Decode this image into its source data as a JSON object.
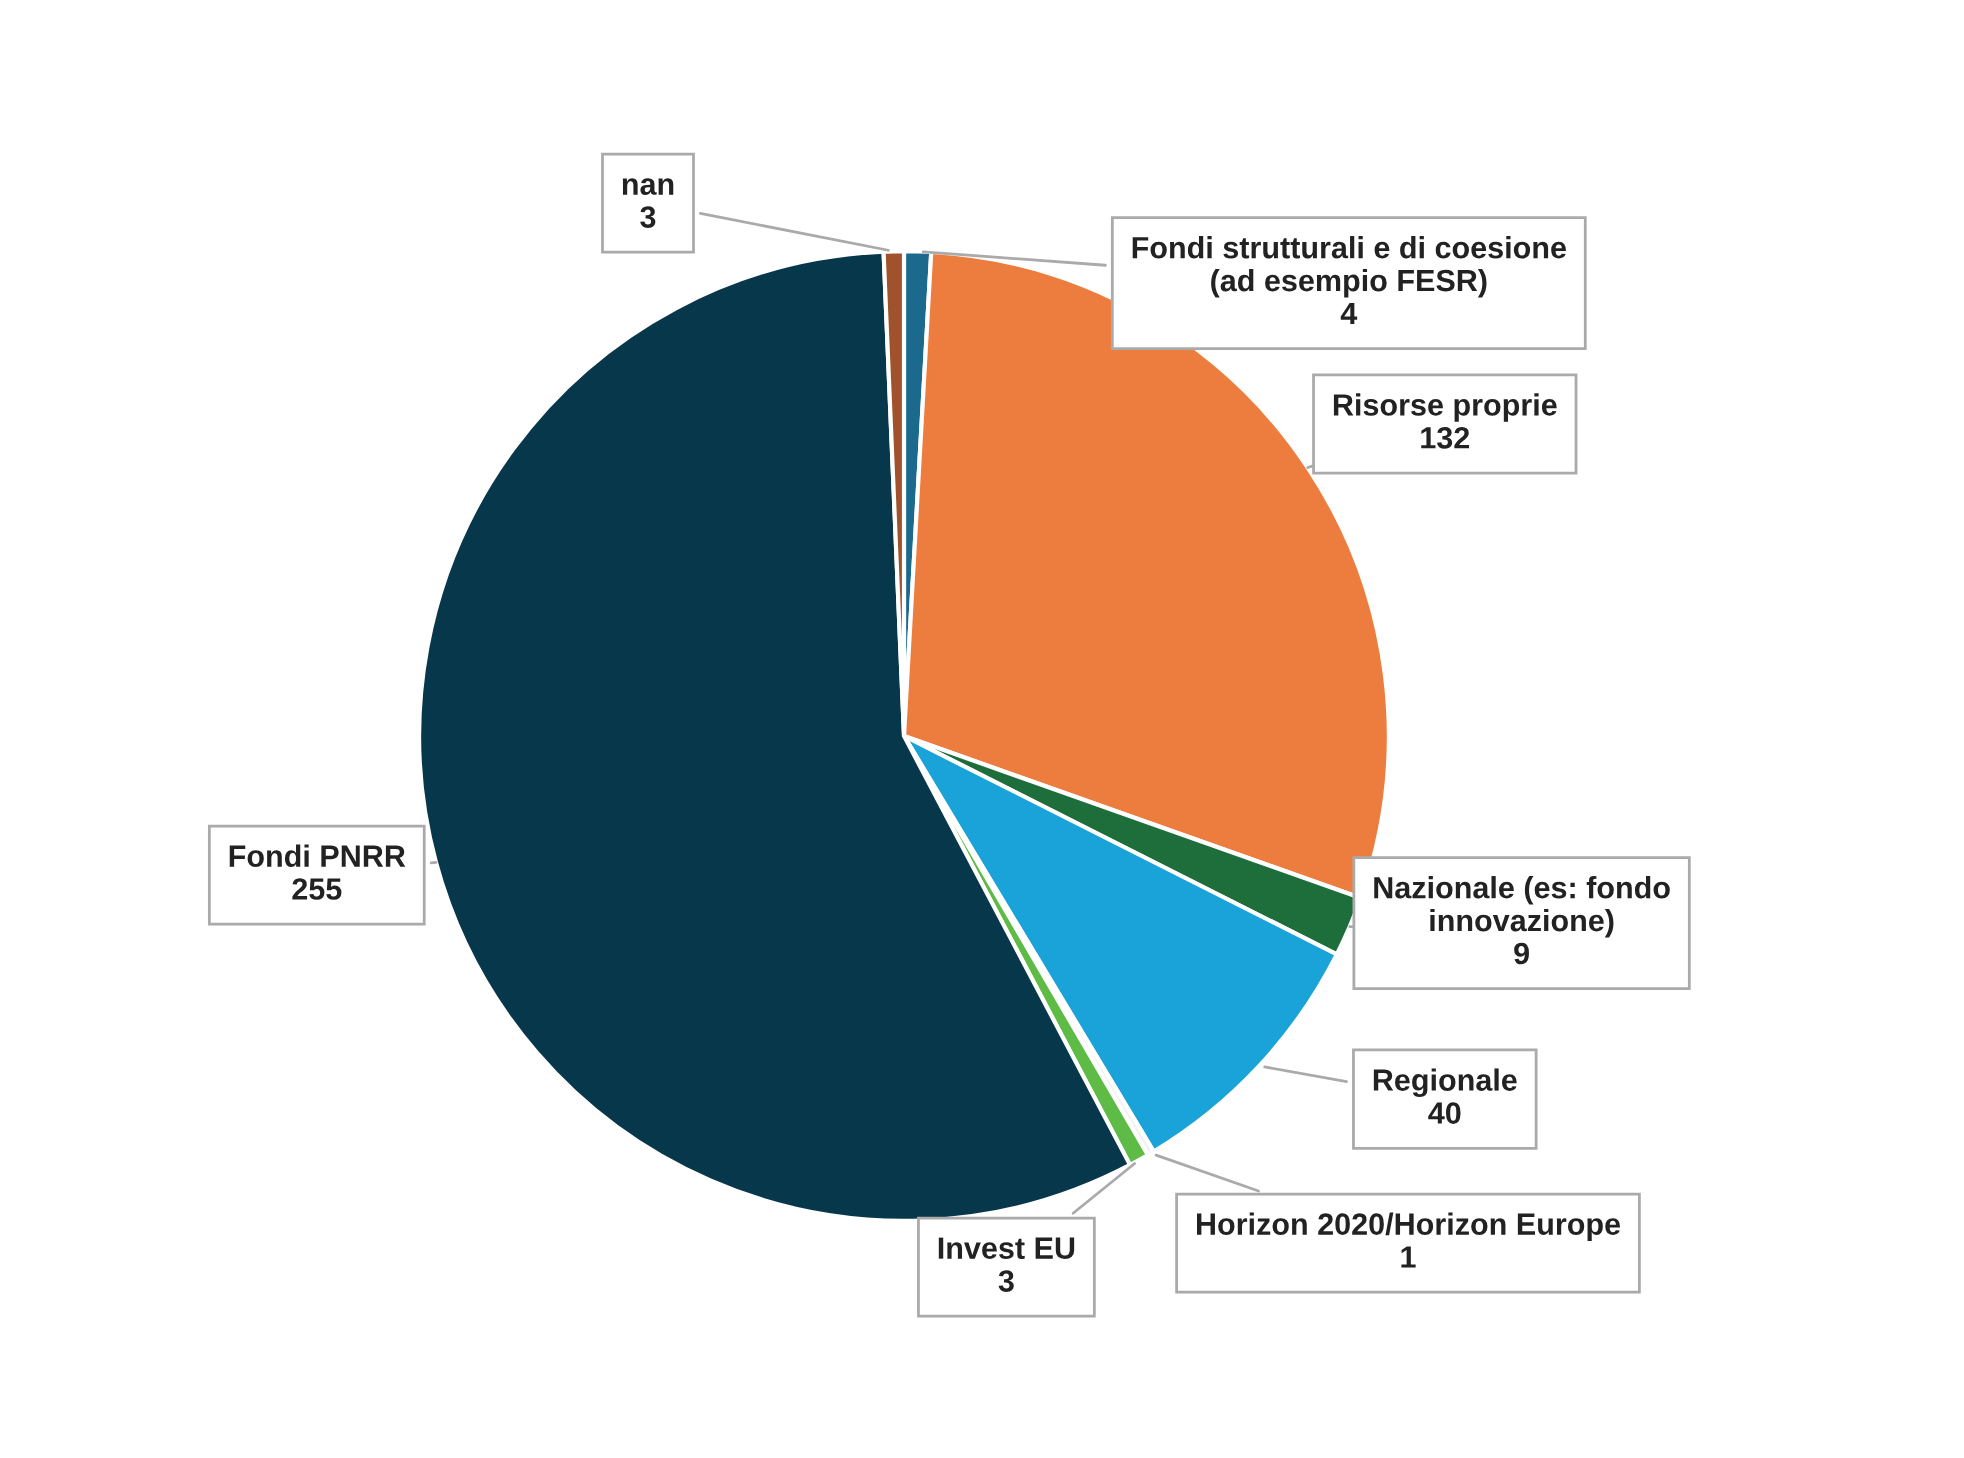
{
  "chart_data": {
    "type": "pie",
    "categories": [
      "Fondi strutturali e di coesione\n(ad esempio FESR)",
      "Risorse proprie",
      "Nazionale (es: fondo\ninnovazione)",
      "Regionale",
      "Horizon 2020/Horizon Europe",
      "Invest EU",
      "Fondi PNRR",
      "nan"
    ],
    "values": [
      4,
      132,
      9,
      40,
      1,
      3,
      255,
      3
    ],
    "colors": [
      "#1b6a8e",
      "#ed7d3f",
      "#1e6e3c",
      "#1aa3d8",
      "#f2f2f2",
      "#5dbb46",
      "#07374b",
      "#a0522d"
    ],
    "data_labels": true,
    "legend": false
  }
}
